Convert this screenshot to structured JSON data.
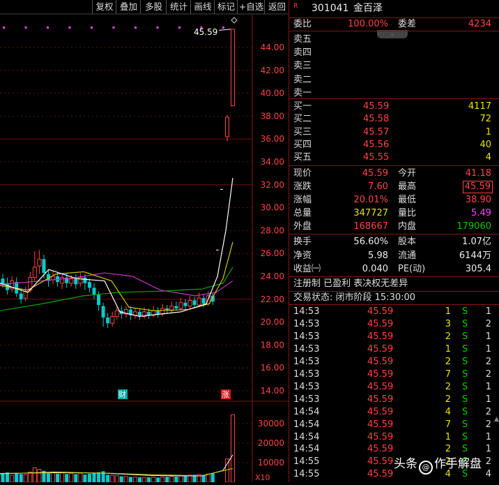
{
  "toolbar": {
    "buttons": [
      "复权",
      "叠加",
      "多股",
      "统计",
      "画线",
      "标记",
      "+自选",
      "返回"
    ]
  },
  "chart": {
    "price_label_max": "45.59",
    "y_ticks": [
      "44.00",
      "42.00",
      "40.00",
      "38.00",
      "36.00",
      "34.00",
      "32.00",
      "30.00",
      "28.00",
      "26.00",
      "24.00",
      "22.00",
      "20.00",
      "18.00",
      "16.00",
      "14.00"
    ],
    "vol_ticks": [
      "30000",
      "20000",
      "10000"
    ],
    "vol_unit": "X10",
    "marker_cai": "财",
    "marker_zhang": "涨"
  },
  "quote": {
    "code": "301041",
    "name": "金百泽",
    "r_badge": "R",
    "weibi_label": "委比",
    "weibi_value": "100.00%",
    "weicha_label": "委差",
    "weicha_value": "4234",
    "sell": [
      {
        "label": "卖五",
        "price": "",
        "vol": ""
      },
      {
        "label": "卖四",
        "price": "",
        "vol": ""
      },
      {
        "label": "卖三",
        "price": "",
        "vol": ""
      },
      {
        "label": "卖二",
        "price": "",
        "vol": ""
      },
      {
        "label": "卖一",
        "price": "",
        "vol": ""
      }
    ],
    "buy": [
      {
        "label": "买一",
        "price": "45.59",
        "vol": "4117"
      },
      {
        "label": "买二",
        "price": "45.58",
        "vol": "72"
      },
      {
        "label": "买三",
        "price": "45.57",
        "vol": "1"
      },
      {
        "label": "买四",
        "price": "45.56",
        "vol": "40"
      },
      {
        "label": "买五",
        "price": "45.55",
        "vol": "4"
      }
    ],
    "stats": [
      {
        "l1": "现价",
        "v1": "45.59",
        "c1": "red",
        "l2": "今开",
        "v2": "41.18",
        "c2": "red"
      },
      {
        "l1": "涨跌",
        "v1": "7.60",
        "c1": "red",
        "l2": "最高",
        "v2": "45.59",
        "c2": "red"
      },
      {
        "l1": "涨幅",
        "v1": "20.01%",
        "c1": "red",
        "l2": "最低",
        "v2": "38.90",
        "c2": "red"
      },
      {
        "l1": "总量",
        "v1": "347727",
        "c1": "yellow",
        "l2": "量比",
        "v2": "5.49",
        "c2": "magenta"
      },
      {
        "l1": "外盘",
        "v1": "168667",
        "c1": "red",
        "l2": "内盘",
        "v2": "179060",
        "c2": "green"
      }
    ],
    "stats2": [
      {
        "l1": "换手",
        "v1": "56.60%",
        "l2": "股本",
        "v2": "1.07亿"
      },
      {
        "l1": "净资",
        "v1": "5.98",
        "l2": "流通",
        "v2": "6144万"
      },
      {
        "l1": "收益㈠",
        "v1": "0.040",
        "l2": "PE(动)",
        "v2": "305.4"
      }
    ],
    "note": "注册制 已盈利 表决权无差异",
    "status": "交易状态: 闭市阶段 15:30:00",
    "trades": [
      {
        "t": "14:53",
        "p": "45.59",
        "v": "1",
        "s": "S",
        "n": "1"
      },
      {
        "t": "14:53",
        "p": "45.59",
        "v": "3",
        "s": "S",
        "n": "2"
      },
      {
        "t": "14:53",
        "p": "45.59",
        "v": "2",
        "s": "S",
        "n": "1"
      },
      {
        "t": "14:53",
        "p": "45.59",
        "v": "1",
        "s": "S",
        "n": "1"
      },
      {
        "t": "14:53",
        "p": "45.59",
        "v": "2",
        "s": "S",
        "n": "2"
      },
      {
        "t": "14:53",
        "p": "45.59",
        "v": "7",
        "s": "S",
        "n": "2"
      },
      {
        "t": "14:53",
        "p": "45.59",
        "v": "2",
        "s": "S",
        "n": "1"
      },
      {
        "t": "14:53",
        "p": "45.59",
        "v": "2",
        "s": "S",
        "n": "1"
      },
      {
        "t": "14:54",
        "p": "45.59",
        "v": "4",
        "s": "S",
        "n": "2"
      },
      {
        "t": "14:54",
        "p": "45.59",
        "v": "7",
        "s": "S",
        "n": "2"
      },
      {
        "t": "14:54",
        "p": "45.59",
        "v": "1",
        "s": "S",
        "n": "1"
      },
      {
        "t": "14:54",
        "p": "45.59",
        "v": "2",
        "s": "S",
        "n": "1"
      },
      {
        "t": "14:55",
        "p": "45.59",
        "v": "2",
        "s": "S",
        "n": "2"
      },
      {
        "t": "14:55",
        "p": "45.59",
        "v": "4",
        "s": "S",
        "n": "4"
      }
    ]
  },
  "watermark": {
    "text1": "头条",
    "text2": "作手解盘"
  },
  "colors": {
    "up": "#ff4444",
    "down": "#00cccc",
    "grid": "#8a1111"
  }
}
